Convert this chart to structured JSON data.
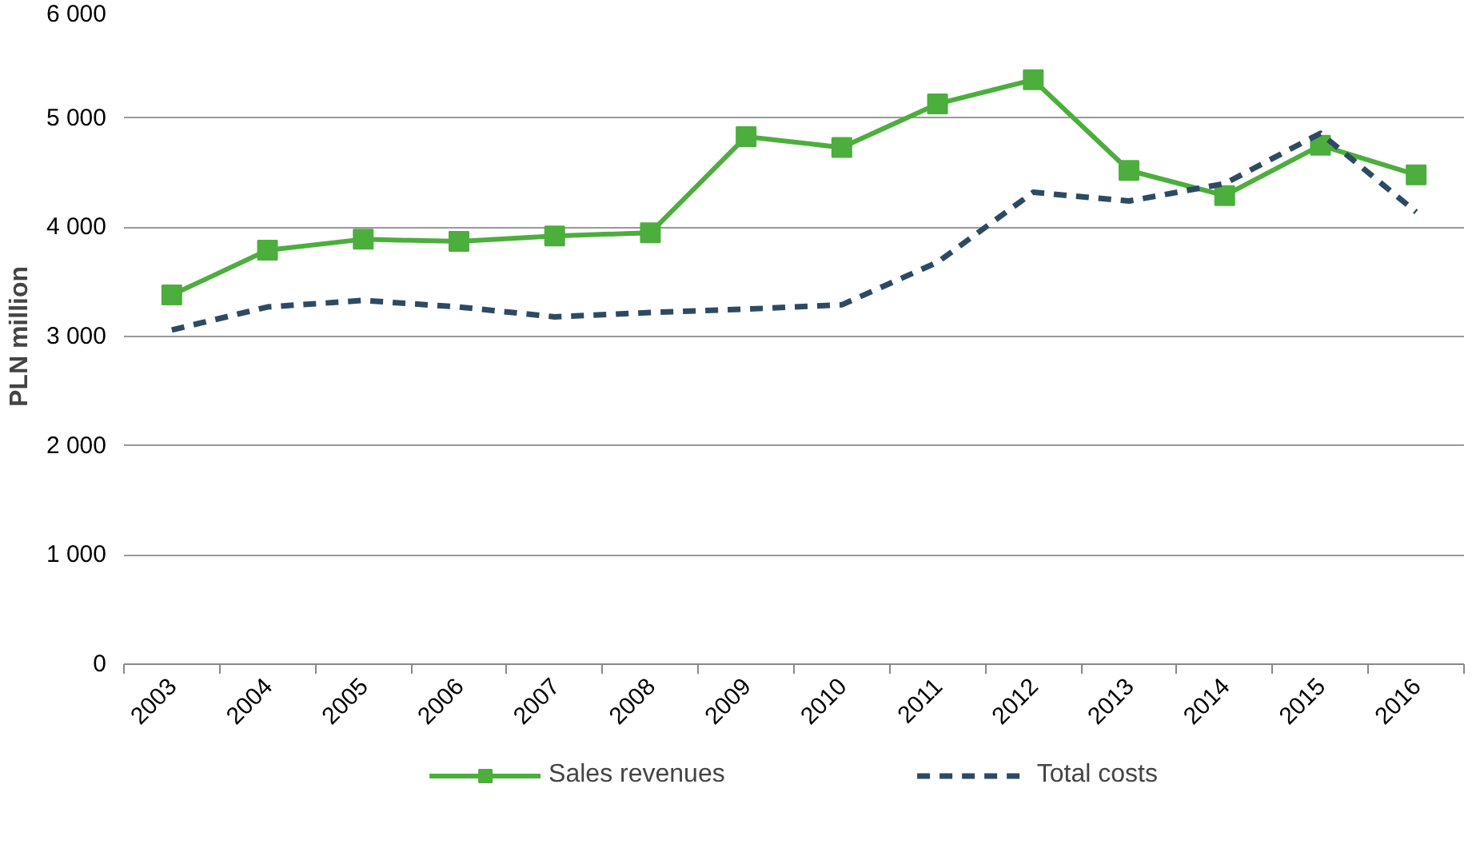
{
  "chart_data": {
    "type": "line",
    "ylabel": "PLN million",
    "categories": [
      "2003",
      "2004",
      "2005",
      "2006",
      "2007",
      "2008",
      "2009",
      "2010",
      "2011",
      "2012",
      "2013",
      "2014",
      "2015",
      "2016"
    ],
    "series": [
      {
        "name": "Sales revenues",
        "color": "#4cae3c",
        "marker": "square",
        "line_style": "solid",
        "values": [
          3380,
          3790,
          3890,
          3870,
          3920,
          3950,
          4830,
          4730,
          5130,
          5350,
          4520,
          4290,
          4750,
          4480
        ]
      },
      {
        "name": "Total costs",
        "color": "#2e4a62",
        "marker": "none",
        "line_style": "dashed",
        "values": [
          3060,
          3270,
          3330,
          3270,
          3180,
          3220,
          3250,
          3290,
          3680,
          4320,
          4240,
          4400,
          4860,
          4140
        ]
      }
    ],
    "ylim": [
      0,
      6000
    ],
    "yticks": [
      0,
      {
        "value": 1000,
        "label": "1 000"
      },
      {
        "value": 2000,
        "label": "2 000"
      },
      {
        "value": 3000,
        "label": "3 000"
      },
      {
        "value": 4000,
        "label": "4 000"
      },
      {
        "value": 5000,
        "label": "5 000"
      },
      {
        "value": 6000,
        "label": "6 000"
      }
    ],
    "grid": "y",
    "legend": "bottom"
  }
}
